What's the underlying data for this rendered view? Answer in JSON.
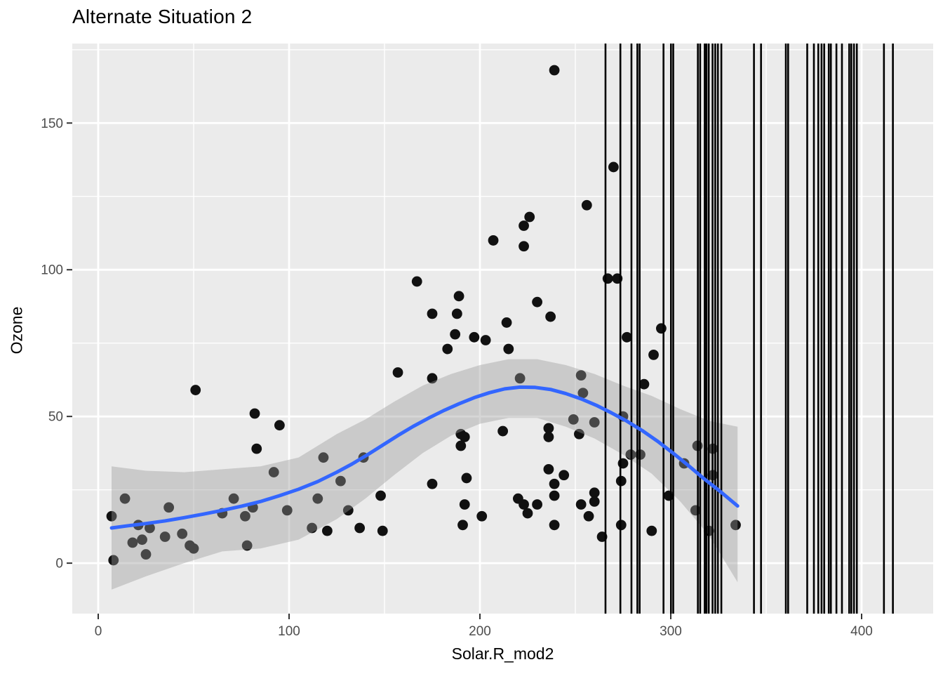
{
  "figure": {
    "title": "Alternate Situation 2",
    "x_axis_label": "Solar.R_mod2",
    "y_axis_label": "Ozone"
  },
  "chart_data": {
    "type": "scatter",
    "title": "Alternate Situation 2",
    "xlabel": "Solar.R_mod2",
    "ylabel": "Ozone",
    "legend_position": "none",
    "grid": "major-and-minor-white-on-gray",
    "x_ticks": [
      0,
      100,
      200,
      300,
      400
    ],
    "x_minor_ticks": [
      50,
      150,
      250,
      350
    ],
    "y_ticks": [
      0,
      50,
      100,
      150
    ],
    "y_minor_ticks": [
      25,
      75,
      125,
      175
    ],
    "x_domain": [
      -13.6,
      437.5
    ],
    "y_domain": [
      -17.2,
      177.1
    ],
    "points": [
      [
        8,
        1
      ],
      [
        7,
        16
      ],
      [
        14,
        22
      ],
      [
        18,
        7
      ],
      [
        21,
        13
      ],
      [
        23,
        8
      ],
      [
        25,
        3
      ],
      [
        27,
        12
      ],
      [
        35,
        9
      ],
      [
        37,
        19
      ],
      [
        44,
        10
      ],
      [
        48,
        6
      ],
      [
        50,
        5
      ],
      [
        51,
        59
      ],
      [
        65,
        17
      ],
      [
        71,
        22
      ],
      [
        77,
        16
      ],
      [
        78,
        6
      ],
      [
        81,
        19
      ],
      [
        83,
        39
      ],
      [
        92,
        31
      ],
      [
        95,
        47
      ],
      [
        99,
        18
      ],
      [
        82,
        51
      ],
      [
        112,
        12
      ],
      [
        115,
        22
      ],
      [
        118,
        36
      ],
      [
        120,
        11
      ],
      [
        127,
        28
      ],
      [
        131,
        18
      ],
      [
        137,
        12
      ],
      [
        139,
        36
      ],
      [
        148,
        23
      ],
      [
        149,
        11
      ],
      [
        157,
        65
      ],
      [
        167,
        96
      ],
      [
        175,
        85
      ],
      [
        175,
        63
      ],
      [
        175,
        27
      ],
      [
        183,
        73
      ],
      [
        187,
        78
      ],
      [
        188,
        85
      ],
      [
        189,
        91
      ],
      [
        190,
        44
      ],
      [
        192,
        43
      ],
      [
        190,
        40
      ],
      [
        193,
        29
      ],
      [
        192,
        20
      ],
      [
        191,
        13
      ],
      [
        197,
        77
      ],
      [
        201,
        16
      ],
      [
        203,
        76
      ],
      [
        207,
        110
      ],
      [
        212,
        45
      ],
      [
        214,
        82
      ],
      [
        215,
        73
      ],
      [
        221,
        63
      ],
      [
        220,
        22
      ],
      [
        223,
        20
      ],
      [
        225,
        17
      ],
      [
        223,
        115
      ],
      [
        223,
        108
      ],
      [
        226,
        118
      ],
      [
        230,
        89
      ],
      [
        230,
        20
      ],
      [
        236,
        46
      ],
      [
        236,
        43
      ],
      [
        236,
        32
      ],
      [
        237,
        84
      ],
      [
        239,
        168
      ],
      [
        239,
        27
      ],
      [
        239,
        23
      ],
      [
        239,
        13
      ],
      [
        244,
        30
      ],
      [
        249,
        49
      ],
      [
        252,
        44
      ],
      [
        253,
        64
      ],
      [
        253,
        20
      ],
      [
        254,
        58
      ],
      [
        256,
        122
      ],
      [
        257,
        16
      ],
      [
        260,
        48
      ],
      [
        260,
        24
      ],
      [
        260,
        21
      ],
      [
        264,
        9
      ],
      [
        267,
        97
      ],
      [
        270,
        135
      ],
      [
        272,
        97
      ],
      [
        274,
        28
      ],
      [
        274,
        13
      ],
      [
        275,
        50
      ],
      [
        275,
        34
      ],
      [
        277,
        77
      ],
      [
        279,
        37
      ],
      [
        284,
        37
      ],
      [
        286,
        61
      ],
      [
        290,
        11
      ],
      [
        291,
        71
      ],
      [
        295,
        80
      ],
      [
        299,
        23
      ],
      [
        307,
        34
      ],
      [
        313,
        18
      ],
      [
        314,
        40
      ],
      [
        320,
        11
      ],
      [
        322,
        39
      ],
      [
        322,
        30
      ],
      [
        334,
        13
      ]
    ],
    "smooth_line": [
      [
        7,
        12
      ],
      [
        15,
        12.7
      ],
      [
        25,
        13.5
      ],
      [
        35,
        14.4
      ],
      [
        45,
        15.5
      ],
      [
        55,
        16.7
      ],
      [
        65,
        18
      ],
      [
        75,
        19.4
      ],
      [
        85,
        21
      ],
      [
        95,
        23
      ],
      [
        105,
        25.2
      ],
      [
        115,
        27.8
      ],
      [
        125,
        31
      ],
      [
        133,
        33.8
      ],
      [
        141,
        36.9
      ],
      [
        149,
        40.2
      ],
      [
        157,
        43.5
      ],
      [
        165,
        46.6
      ],
      [
        173,
        49.4
      ],
      [
        181,
        52
      ],
      [
        189,
        54.3
      ],
      [
        197,
        56.4
      ],
      [
        205,
        58.1
      ],
      [
        213,
        59.4
      ],
      [
        221,
        60
      ],
      [
        229,
        59.9
      ],
      [
        237,
        59.2
      ],
      [
        245,
        57.8
      ],
      [
        253,
        56
      ],
      [
        261,
        53.8
      ],
      [
        269,
        51.2
      ],
      [
        277,
        48.4
      ],
      [
        285,
        45.2
      ],
      [
        293,
        41.6
      ],
      [
        301,
        37.6
      ],
      [
        309,
        33.4
      ],
      [
        317,
        29
      ],
      [
        326,
        24.4
      ],
      [
        335,
        19.5
      ]
    ],
    "confidence_ribbon": [
      [
        7,
        -9,
        33
      ],
      [
        25,
        -4.5,
        31.5
      ],
      [
        45,
        0,
        31
      ],
      [
        65,
        4,
        32
      ],
      [
        85,
        5,
        33
      ],
      [
        105,
        8,
        36
      ],
      [
        125,
        15,
        44
      ],
      [
        140,
        22,
        49
      ],
      [
        155,
        30,
        55
      ],
      [
        170,
        37.5,
        60.5
      ],
      [
        185,
        43.5,
        64.5
      ],
      [
        200,
        47.5,
        67.5
      ],
      [
        215,
        49.5,
        69.5
      ],
      [
        230,
        49.5,
        69.5
      ],
      [
        245,
        46.5,
        67.5
      ],
      [
        260,
        42.5,
        64.5
      ],
      [
        275,
        37,
        60.5
      ],
      [
        290,
        30.5,
        57
      ],
      [
        305,
        21,
        52.5
      ],
      [
        320,
        9.5,
        48.5
      ],
      [
        335,
        -6.5,
        46.5
      ]
    ],
    "vertical_lines": [
      265.8,
      273.6,
      279.4,
      282.5,
      283.7,
      296.2,
      300.1,
      301.3,
      314.2,
      315.4,
      317.8,
      318.7,
      319.9,
      321.9,
      323.3,
      324.7,
      326.5,
      343.6,
      347.3,
      360.3,
      361.5,
      371.5,
      375.0,
      377.3,
      379.0,
      380.4,
      382.8,
      383.9,
      386.8,
      389.7,
      393.5,
      394.6,
      396.0,
      397.5,
      411.7,
      416.4
    ],
    "colors": {
      "panel_background": "#EBEBEB",
      "grid": "#FFFFFF",
      "point": "#111111",
      "smooth_line": "#3366FF",
      "ribbon": "#999999",
      "ribbon_opacity": 0.4,
      "vertical_line": "#000000",
      "axis_text": "#4D4D4D",
      "tick_mark": "#333333"
    }
  }
}
